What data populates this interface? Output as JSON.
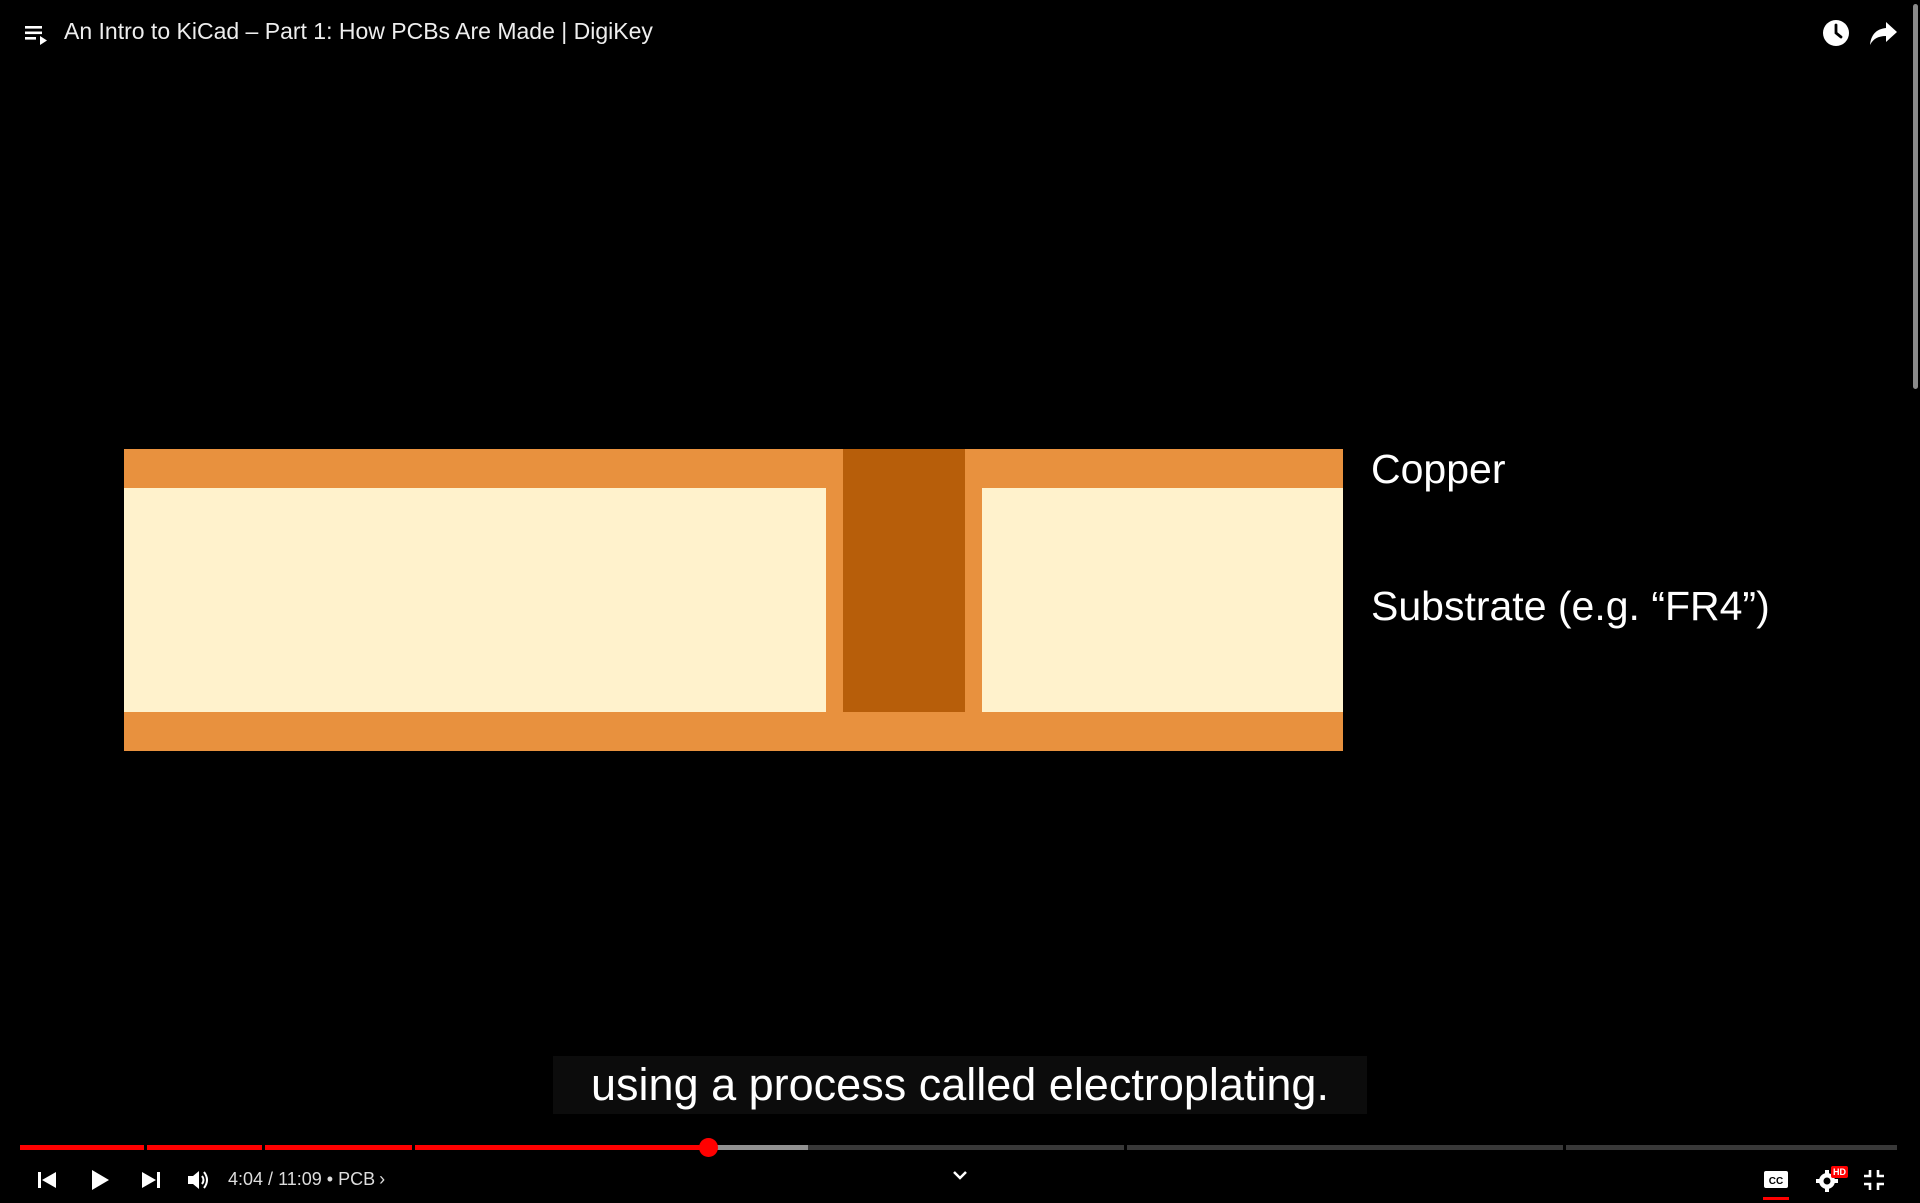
{
  "header": {
    "title": "An Intro to KiCad – Part 1: How PCBs Are Made | DigiKey",
    "icons": [
      "playlist-icon",
      "watch-later-icon",
      "share-icon"
    ]
  },
  "video": {
    "labels": {
      "copper": "Copper",
      "substrate": "Substrate (e.g. “FR4”)"
    },
    "colors": {
      "copper": "#e8913e",
      "via_plating": "#b75e0a",
      "substrate": "#fff2cc",
      "background": "#000000"
    }
  },
  "caption": {
    "text": "using a process called electroplating."
  },
  "player": {
    "current_time": "4:04",
    "separator": " / ",
    "duration": "11:09",
    "chapter_prefix": " • ",
    "chapter": "PCB",
    "chapter_chevron": "›",
    "played_fraction": 0.3667,
    "buffered_fraction": 0.4197,
    "chapter_marks": [
      0.066,
      0.129,
      0.209,
      0.588,
      0.822
    ],
    "accent_color": "#ff0000",
    "hd_badge": "HD",
    "buttons": [
      "previous-icon",
      "play-icon",
      "next-icon",
      "volume-icon",
      "miniplayer-chevron-icon",
      "subtitles-icon",
      "settings-icon",
      "exit-fullscreen-icon"
    ]
  }
}
